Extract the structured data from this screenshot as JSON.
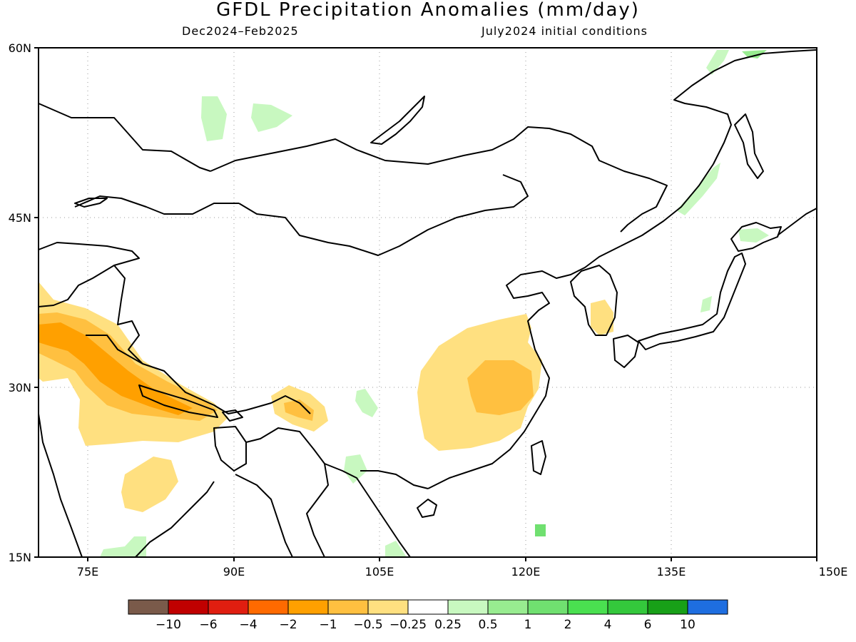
{
  "title": "GFDL Precipitation Anomalies (mm/day)",
  "period": "Dec2024–Feb2025",
  "init": "July2024 initial conditions",
  "axes": {
    "lon_ticks": [
      "75E",
      "90E",
      "105E",
      "120E",
      "135E",
      "150E"
    ],
    "lat_ticks": [
      "60N",
      "45N",
      "30N",
      "15N"
    ]
  },
  "colorbar": {
    "colors": [
      "#7a5a4a",
      "#c00000",
      "#e01e10",
      "#ff6a00",
      "#ffa000",
      "#ffc040",
      "#ffe080",
      "#ffffff",
      "#c8f8c0",
      "#98ec90",
      "#70e070",
      "#4ae050",
      "#34c83c",
      "#18a018",
      "#1e6ee0"
    ],
    "labels": [
      "−10",
      "−6",
      "−4",
      "−2",
      "−1",
      "−0.5",
      "−0.25",
      "0.25",
      "0.5",
      "1",
      "2",
      "4",
      "6",
      "10"
    ]
  }
}
